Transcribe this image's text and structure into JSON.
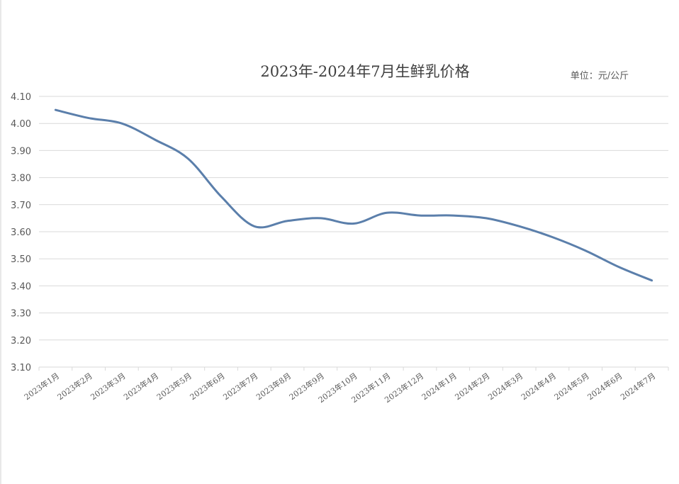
{
  "chart_data": {
    "type": "line",
    "title": "2023年-2024年7月生鲜乳价格",
    "unit": "单位：元/公斤",
    "categories": [
      "2023年1月",
      "2023年2月",
      "2023年3月",
      "2023年4月",
      "2023年5月",
      "2023年6月",
      "2023年7月",
      "2023年8月",
      "2023年9月",
      "2023年10月",
      "2023年11月",
      "2023年12月",
      "2024年1月",
      "2024年2月",
      "2024年3月",
      "2024年4月",
      "2024年5月",
      "2024年6月",
      "2024年7月"
    ],
    "series": [
      {
        "name": "生鲜乳价格",
        "color": "#5b7fab",
        "values": [
          4.05,
          4.02,
          4.0,
          3.94,
          3.87,
          3.73,
          3.62,
          3.64,
          3.65,
          3.63,
          3.67,
          3.66,
          3.66,
          3.65,
          3.62,
          3.58,
          3.53,
          3.47,
          3.42
        ]
      }
    ],
    "ylim": [
      3.1,
      4.1
    ],
    "yticks": [
      {
        "value": 3.1,
        "label": "3.10"
      },
      {
        "value": 3.2,
        "label": "3.20"
      },
      {
        "value": 3.3,
        "label": "3.30"
      },
      {
        "value": 3.4,
        "label": "3.40"
      },
      {
        "value": 3.5,
        "label": "3.50"
      },
      {
        "value": 3.6,
        "label": "3.60"
      },
      {
        "value": 3.7,
        "label": "3.70"
      },
      {
        "value": 3.8,
        "label": "3.80"
      },
      {
        "value": 3.9,
        "label": "3.90"
      },
      {
        "value": 4.0,
        "label": "4.00"
      },
      {
        "value": 4.1,
        "label": "4.10"
      }
    ],
    "grid": true,
    "smooth": true
  }
}
